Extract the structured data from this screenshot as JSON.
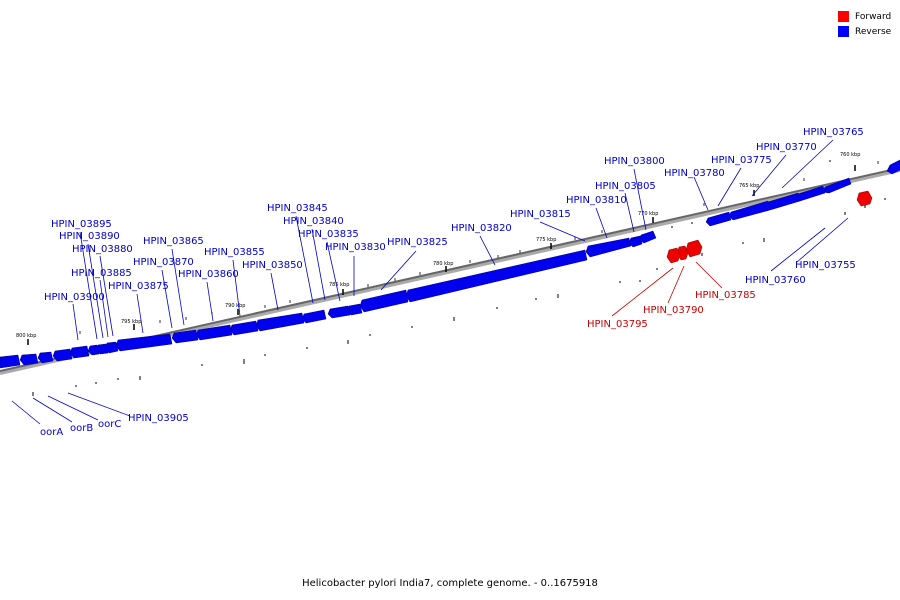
{
  "legend": {
    "forward_label": "Forward",
    "reverse_label": "Reverse",
    "forward_color": "#ff0000",
    "reverse_color": "#0000ff"
  },
  "footer": {
    "caption": "Helicobacter pylori India7, complete genome. - 0..1675918"
  },
  "scale": {
    "ticks": [
      {
        "label": "760 kbp"
      },
      {
        "label": "765 kbp"
      },
      {
        "label": "770 kbp"
      },
      {
        "label": "775 kbp"
      },
      {
        "label": "780 kbp"
      },
      {
        "label": "785 kbp"
      },
      {
        "label": "790 kbp"
      },
      {
        "label": "795 kbp"
      },
      {
        "label": "800 kbp"
      }
    ]
  },
  "reverse_labels": [
    "HPIN_03765",
    "HPIN_03770",
    "HPIN_03775",
    "HPIN_03780",
    "HPIN_03800",
    "HPIN_03805",
    "HPIN_03810",
    "HPIN_03815",
    "HPIN_03820",
    "HPIN_03825",
    "HPIN_03830",
    "HPIN_03835",
    "HPIN_03840",
    "HPIN_03845",
    "HPIN_03850",
    "HPIN_03855",
    "HPIN_03860",
    "HPIN_03865",
    "HPIN_03870",
    "HPIN_03875",
    "HPIN_03880",
    "HPIN_03885",
    "HPIN_03890",
    "HPIN_03895",
    "HPIN_03900",
    "HPIN_03755",
    "HPIN_03760",
    "HPIN_03905",
    "oorA",
    "oorB",
    "oorC"
  ],
  "forward_labels": [
    "HPIN_03785",
    "HPIN_03790",
    "HPIN_03795"
  ]
}
